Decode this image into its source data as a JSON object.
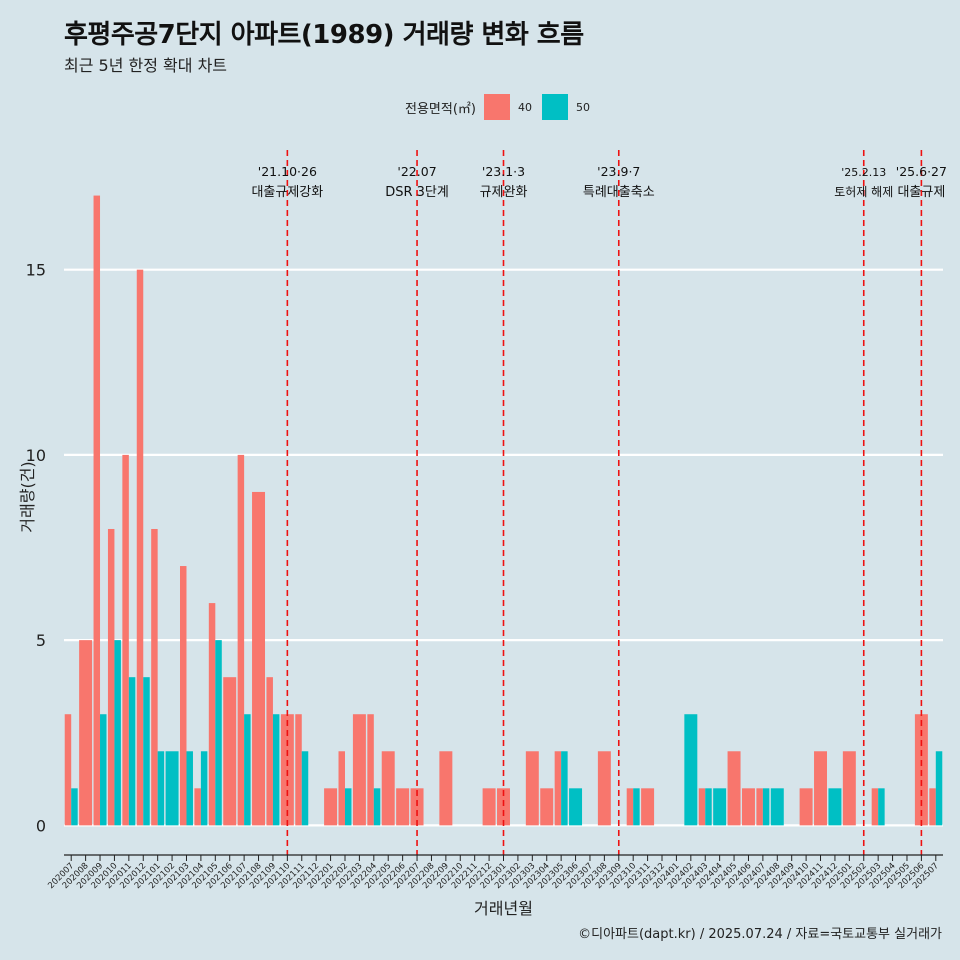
{
  "title": "후평주공7단지 아파트(1989) 거래량 변화 흐름",
  "subtitle": "최근 5년 한정 확대 차트",
  "caption": "©디아파트(dapt.kr) / 2025.07.24 / 자료=국토교통부 실거래가",
  "legend": {
    "title": "전용면적(㎡)",
    "items": [
      {
        "label": "40",
        "color": "#f8766d"
      },
      {
        "label": "50",
        "color": "#00bfc4"
      }
    ]
  },
  "chart_data": {
    "type": "bar",
    "xlabel": "거래년월",
    "ylabel": "거래량(건)",
    "ylim": [
      -0.8,
      18.5
    ],
    "yticks": [
      0,
      5,
      10,
      15
    ],
    "grid": true,
    "legend_position": "top",
    "categories": [
      "202007",
      "202008",
      "202009",
      "202010",
      "202011",
      "202012",
      "202101",
      "202102",
      "202103",
      "202104",
      "202105",
      "202106",
      "202107",
      "202108",
      "202109",
      "202110",
      "202111",
      "202112",
      "202201",
      "202202",
      "202203",
      "202204",
      "202205",
      "202206",
      "202207",
      "202208",
      "202209",
      "202210",
      "202211",
      "202212",
      "202301",
      "202302",
      "202303",
      "202304",
      "202305",
      "202306",
      "202307",
      "202308",
      "202309",
      "202310",
      "202311",
      "202312",
      "202401",
      "202402",
      "202403",
      "202404",
      "202405",
      "202406",
      "202407",
      "202408",
      "202409",
      "202410",
      "202411",
      "202412",
      "202501",
      "202502",
      "202503",
      "202504",
      "202505",
      "202506",
      "202507"
    ],
    "series": [
      {
        "name": "40",
        "color": "#f8766d",
        "values": [
          3,
          5,
          17,
          8,
          10,
          15,
          8,
          0,
          7,
          1,
          6,
          4,
          10,
          9,
          4,
          3,
          3,
          0,
          1,
          2,
          3,
          3,
          2,
          1,
          1,
          0,
          2,
          0,
          0,
          1,
          1,
          0,
          2,
          1,
          2,
          0,
          0,
          2,
          0,
          1,
          1,
          0,
          0,
          0,
          1,
          0,
          2,
          1,
          1,
          0,
          0,
          1,
          2,
          0,
          2,
          0,
          1,
          0,
          0,
          3,
          1
        ]
      },
      {
        "name": "50",
        "color": "#00bfc4",
        "values": [
          1,
          0,
          3,
          5,
          4,
          4,
          2,
          2,
          2,
          2,
          5,
          0,
          3,
          0,
          3,
          0,
          2,
          0,
          0,
          1,
          0,
          1,
          0,
          0,
          0,
          0,
          0,
          0,
          0,
          0,
          0,
          0,
          0,
          0,
          2,
          1,
          0,
          0,
          0,
          1,
          0,
          0,
          0,
          3,
          1,
          1,
          0,
          0,
          1,
          1,
          0,
          0,
          0,
          1,
          0,
          0,
          1,
          0,
          0,
          0,
          2
        ]
      }
    ],
    "annotations": [
      {
        "at": "202110",
        "date": "'21.10·26",
        "label": "대출규제강화"
      },
      {
        "at": "202207",
        "date": "'22.07",
        "label": "DSR 3단계"
      },
      {
        "at": "202301",
        "date": "'23.1·3",
        "label": "규제완화"
      },
      {
        "at": "202309",
        "date": "'23.9·7",
        "label": "특례대출축소"
      },
      {
        "at": "202502",
        "date": "'25.2.13",
        "label": "토허제 해제"
      },
      {
        "at": "202506",
        "date": "'25.6·27",
        "label": "대출규제"
      }
    ]
  }
}
